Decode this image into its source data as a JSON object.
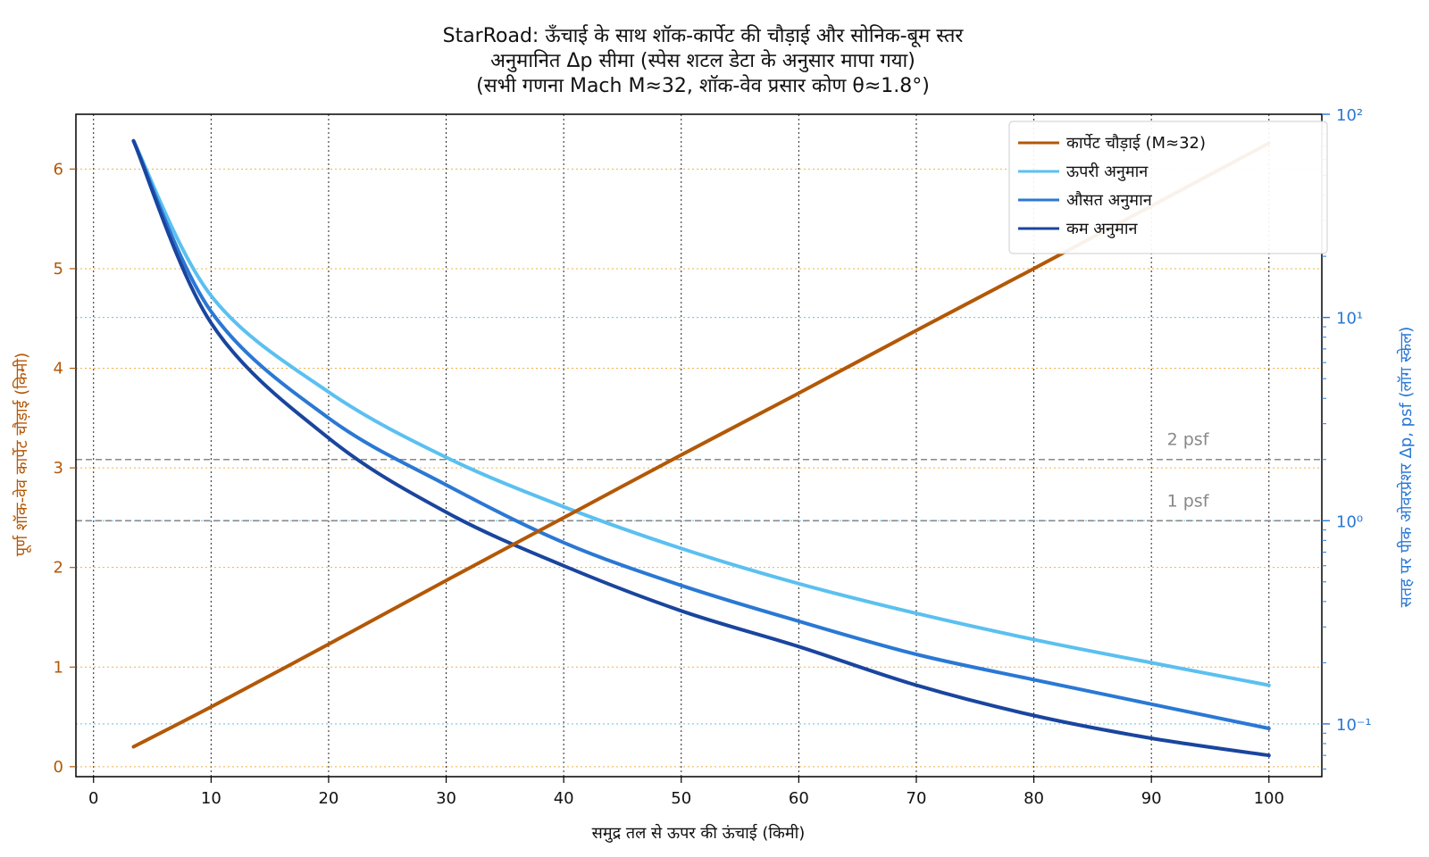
{
  "chart_data": {
    "type": "line",
    "title_lines": [
      "StarRoad: ऊँचाई के साथ शॉक-कार्पेट की चौड़ाई और सोनिक-बूम स्तर",
      "अनुमानित Δp सीमा (स्पेस शटल डेटा के अनुसार मापा गया)",
      "(सभी गणना Mach M≈32, शॉक-वेव प्रसार कोण θ≈1.8°)"
    ],
    "xlabel": "समुद्र तल से ऊपर की ऊंचाई (किमी)",
    "ylabel_left": "पूर्ण शॉक-वेव कार्पेट चौड़ाई (किमी)",
    "ylabel_right": "सतह पर पीक ओवरप्रेशर Δp, psf (लॉग स्केल)",
    "xlim": [
      -1.5,
      104.5
    ],
    "ylim_left": [
      -0.1,
      6.55
    ],
    "ylim_right_log": [
      0.055,
      100
    ],
    "right_scale": "log",
    "grid": "on (dotted)",
    "legend_position": "top-right",
    "x_ticks": [
      "0",
      "10",
      "20",
      "30",
      "40",
      "50",
      "60",
      "70",
      "80",
      "90",
      "100"
    ],
    "y_left_ticks": [
      "0",
      "1",
      "2",
      "3",
      "4",
      "5",
      "6"
    ],
    "y_right_ticks": [
      "10⁻¹",
      "10⁰",
      "10¹",
      "10²"
    ],
    "colors": {
      "width": "#b35806",
      "upper": "#5bc0f0",
      "mean": "#2a78d4",
      "low": "#1a459e",
      "left_axis": "#b35806",
      "right_axis": "#2a78d4",
      "ref": "#888888"
    },
    "series": [
      {
        "name": "कार्पेट चौड़ाई (M≈32)",
        "axis": "left",
        "x": [
          3.4,
          10,
          20,
          30,
          40,
          50,
          60,
          70,
          80,
          90,
          100
        ],
        "values": [
          0.2,
          0.6,
          1.23,
          1.87,
          2.5,
          3.13,
          3.75,
          4.38,
          5.0,
          5.63,
          6.26
        ]
      },
      {
        "name": "ऊपरी अनुमान",
        "axis": "right",
        "x": [
          3.4,
          10,
          20,
          30,
          40,
          50,
          60,
          70,
          80,
          90,
          100
        ],
        "values": [
          74,
          12.8,
          4.3,
          2.05,
          1.17,
          0.73,
          0.49,
          0.35,
          0.26,
          0.2,
          0.155
        ]
      },
      {
        "name": "औसत अनुमान",
        "axis": "right",
        "x": [
          3.4,
          10,
          20,
          30,
          40,
          50,
          60,
          70,
          80,
          90,
          100
        ],
        "values": [
          74,
          10.7,
          3.2,
          1.5,
          0.78,
          0.48,
          0.32,
          0.22,
          0.165,
          0.125,
          0.095
        ]
      },
      {
        "name": "कम अनुमान",
        "axis": "right",
        "x": [
          3.4,
          10,
          20,
          30,
          40,
          50,
          60,
          70,
          80,
          90,
          100
        ],
        "values": [
          74,
          9.4,
          2.55,
          1.1,
          0.6,
          0.36,
          0.24,
          0.155,
          0.11,
          0.085,
          0.07
        ]
      }
    ],
    "reference_lines": [
      {
        "label": "2 psf",
        "value": 2
      },
      {
        "label": "1 psf",
        "value": 1
      }
    ]
  }
}
